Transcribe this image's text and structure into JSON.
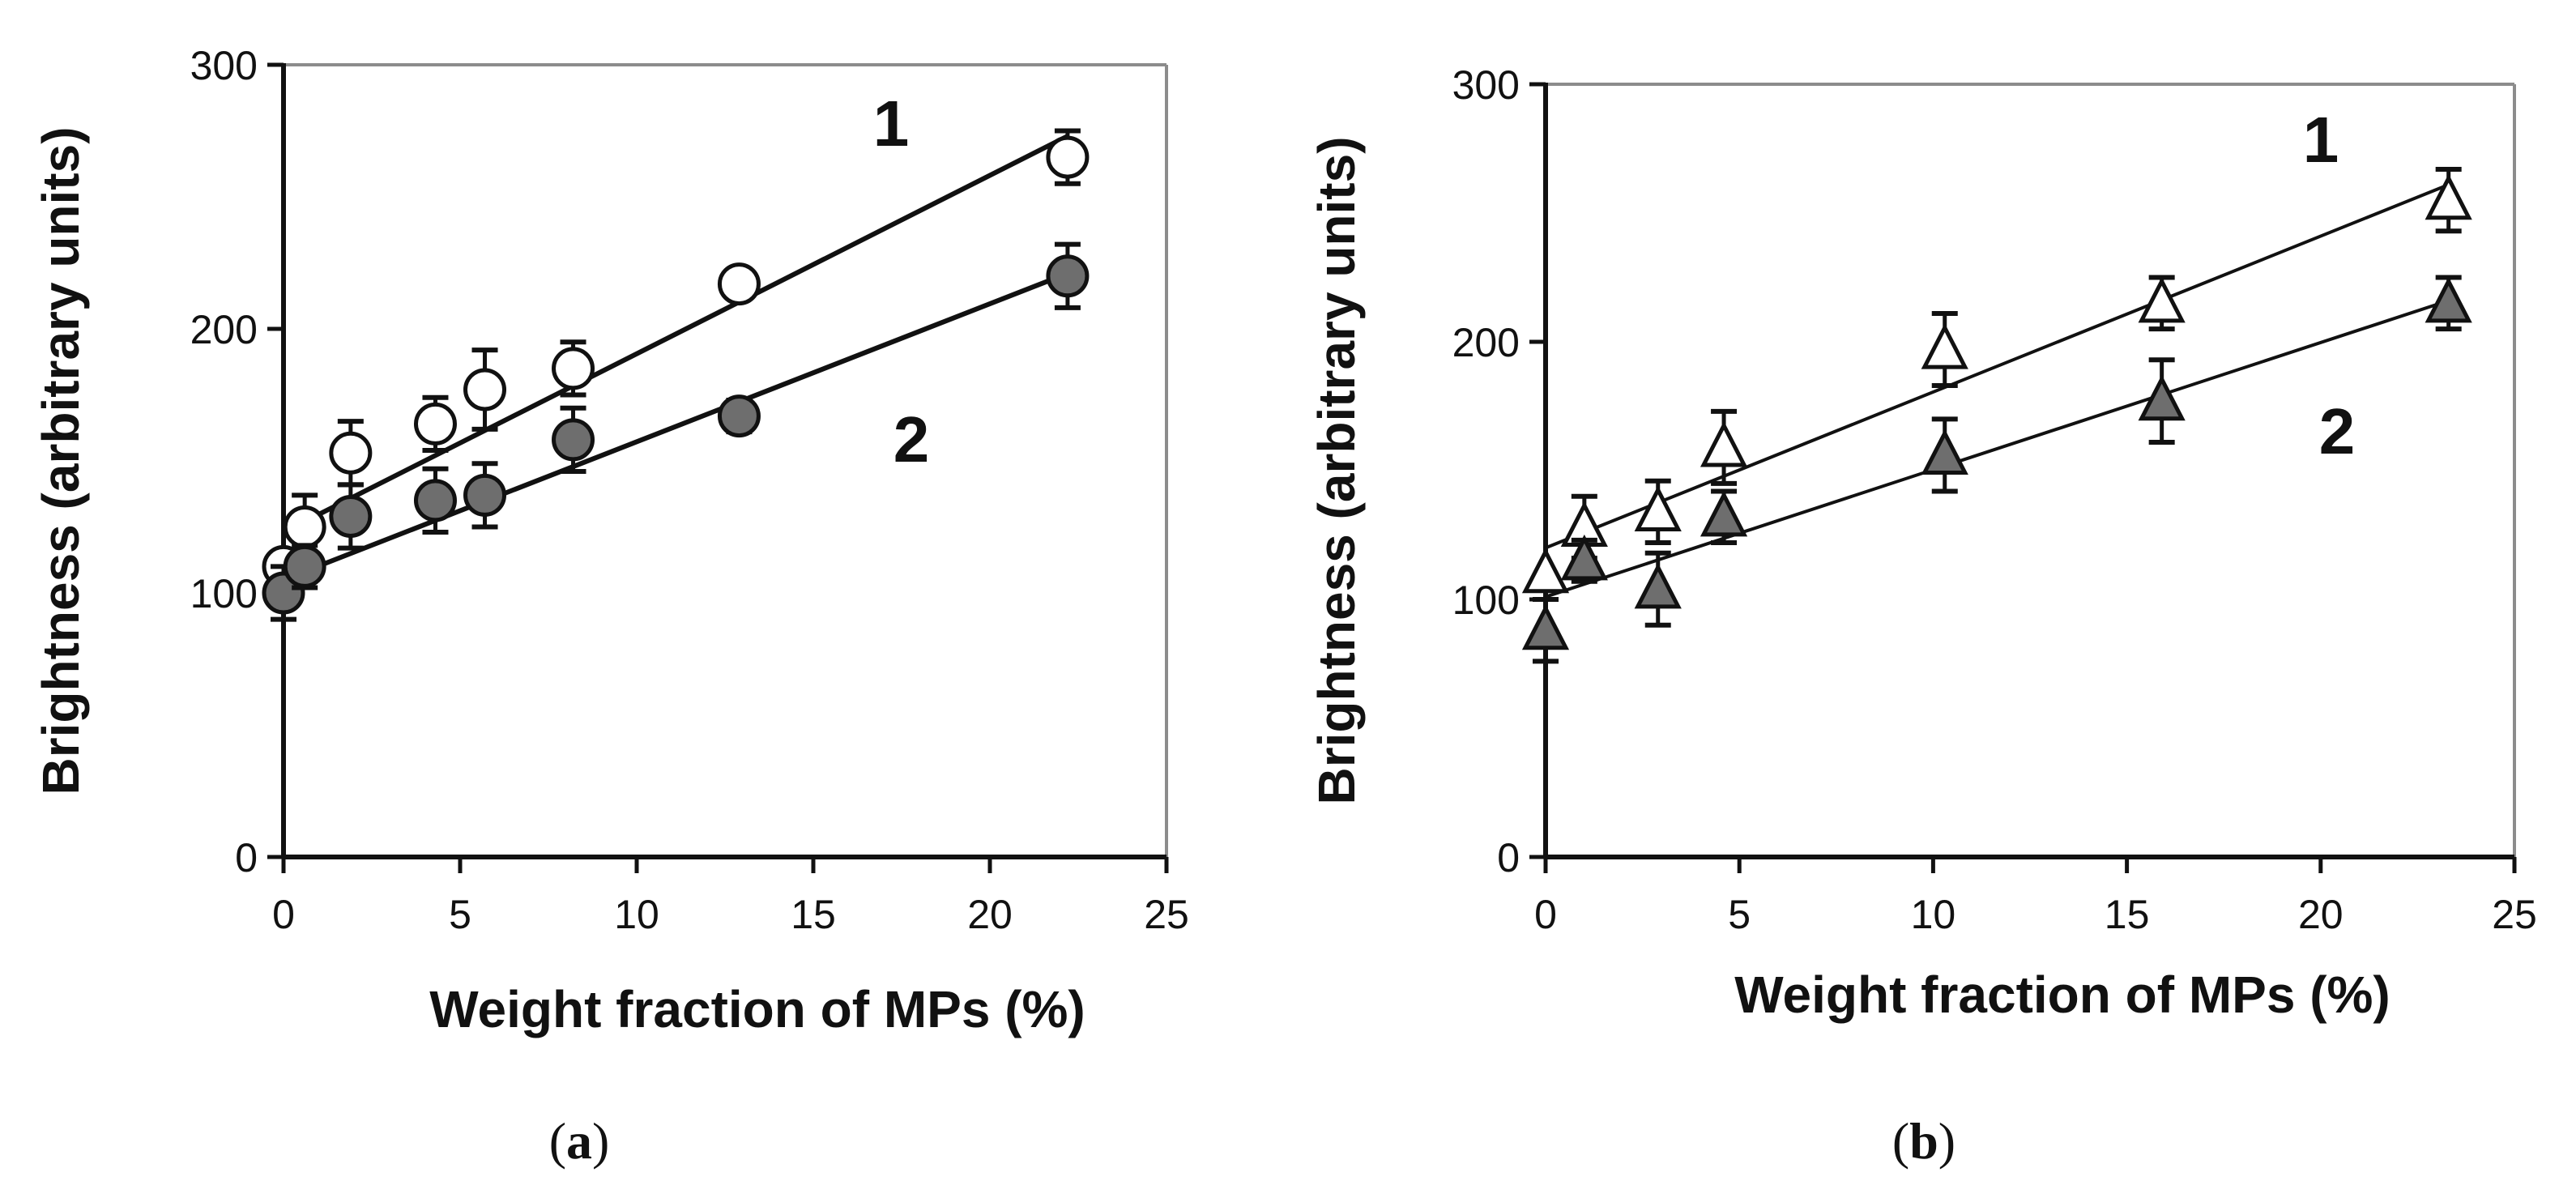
{
  "chart_data": [
    {
      "id": "a",
      "type": "scatter",
      "caption_letter": "a",
      "xlabel": "Weight fraction of MPs (%)",
      "ylabel": "Brightness (arbitrary units)",
      "xlim": [
        0,
        25
      ],
      "ylim": [
        0,
        300
      ],
      "xticks": [
        "0",
        "5",
        "10",
        "15",
        "20",
        "25"
      ],
      "yticks": [
        "0",
        "100",
        "200",
        "300"
      ],
      "marker": "circle",
      "series": [
        {
          "name": "1",
          "fill": "#ffffff",
          "x": [
            0,
            0.6,
            1.9,
            4.3,
            5.7,
            8.2,
            12.9,
            22.2
          ],
          "y": [
            110,
            125,
            153,
            164,
            177,
            185,
            217,
            265
          ],
          "err": [
            0,
            12,
            12,
            10,
            15,
            10,
            0,
            10
          ],
          "fit": [
            [
              0,
              123
            ],
            [
              22.2,
              273
            ]
          ]
        },
        {
          "name": "2",
          "fill": "#6e6e6e",
          "x": [
            0,
            0.6,
            1.9,
            4.3,
            5.7,
            8.2,
            12.9,
            22.2
          ],
          "y": [
            100,
            110,
            129,
            135,
            137,
            158,
            167,
            220
          ],
          "err": [
            10,
            8,
            12,
            12,
            12,
            12,
            6,
            12
          ],
          "fit": [
            [
              0,
              105
            ],
            [
              22.2,
              221
            ]
          ]
        }
      ]
    },
    {
      "id": "b",
      "type": "scatter",
      "caption_letter": "b",
      "xlabel": "Weight fraction of MPs (%)",
      "ylabel": "Brightness (arbitrary units)",
      "xlim": [
        0,
        25
      ],
      "ylim": [
        0,
        300
      ],
      "xticks": [
        "0",
        "5",
        "10",
        "15",
        "20",
        "25"
      ],
      "yticks": [
        "0",
        "100",
        "200",
        "300"
      ],
      "marker": "triangle",
      "series": [
        {
          "name": "1",
          "fill": "#ffffff",
          "x": [
            0,
            1,
            2.9,
            4.6,
            10.3,
            15.9,
            23.3
          ],
          "y": [
            110,
            128,
            134,
            159,
            197,
            215,
            255
          ],
          "err": [
            0,
            12,
            12,
            14,
            14,
            10,
            12
          ],
          "fit": [
            [
              0,
              120
            ],
            [
              23.3,
              261
            ]
          ]
        },
        {
          "name": "2",
          "fill": "#6e6e6e",
          "x": [
            0,
            1,
            2.9,
            4.6,
            10.3,
            15.9,
            23.3
          ],
          "y": [
            88,
            115,
            104,
            132,
            156,
            177,
            215
          ],
          "err": [
            12,
            8,
            14,
            10,
            14,
            16,
            10
          ],
          "fit": [
            [
              0,
              101
            ],
            [
              23.3,
              216
            ]
          ]
        }
      ]
    }
  ]
}
